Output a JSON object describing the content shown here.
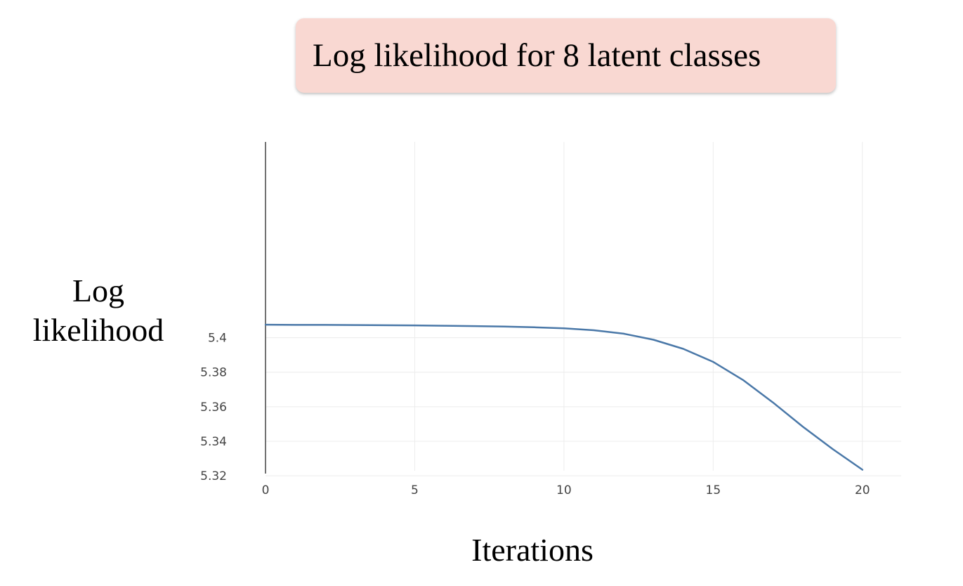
{
  "chart_data": {
    "type": "line",
    "title": "Log likelihood for 8 latent classes",
    "xlabel": "Iterations",
    "ylabel_lines": [
      "Log",
      "likelihood"
    ],
    "xlim": [
      0,
      21.3
    ],
    "ylim": [
      5.318,
      5.5134
    ],
    "x_ticks": [
      0,
      5,
      10,
      15,
      20
    ],
    "x_tick_labels": [
      "0",
      "5",
      "10",
      "15",
      "20"
    ],
    "y_ticks": [
      5.32,
      5.34,
      5.36,
      5.38,
      5.4
    ],
    "y_tick_labels": [
      "5.32",
      "5.34",
      "5.36",
      "5.38",
      "5.4"
    ],
    "grid": true,
    "series": [
      {
        "color": "#4a78a8",
        "x": [
          0,
          1,
          2,
          3,
          4,
          5,
          6,
          7,
          8,
          9,
          10,
          11,
          12,
          13,
          14,
          15,
          16,
          17,
          18,
          19,
          20
        ],
        "y": [
          5.4075,
          5.4074,
          5.4074,
          5.4073,
          5.4072,
          5.4071,
          5.4069,
          5.4067,
          5.4064,
          5.406,
          5.4054,
          5.4043,
          5.4023,
          5.3988,
          5.3935,
          5.386,
          5.3755,
          5.3625,
          5.3485,
          5.3355,
          5.3235
        ]
      }
    ]
  }
}
